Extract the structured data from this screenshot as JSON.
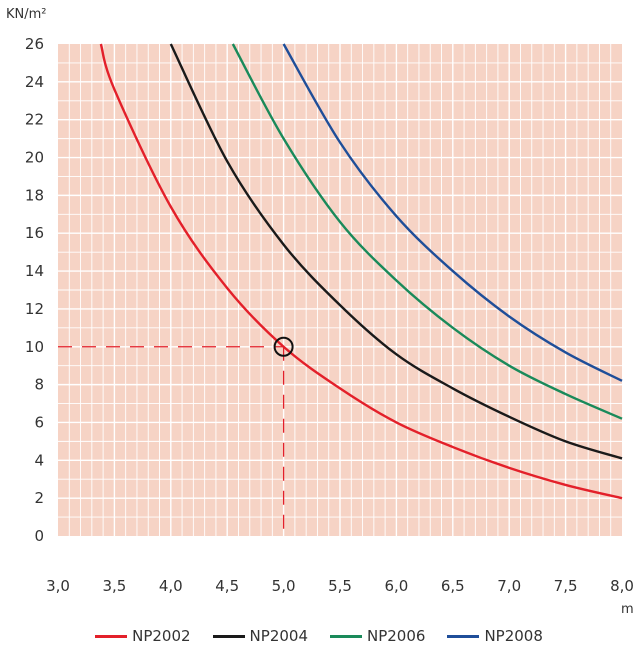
{
  "chart_data": {
    "type": "line",
    "ylabel": "KN/m²",
    "xlabel": "m",
    "x_ticks": [
      "3,0",
      "3,5",
      "4,0",
      "4,5",
      "5,0",
      "5,5",
      "6,0",
      "6,5",
      "7,0",
      "7,5",
      "8,0"
    ],
    "y_ticks": [
      "0",
      "2",
      "4",
      "6",
      "8",
      "10",
      "12",
      "14",
      "16",
      "18",
      "20",
      "22",
      "24",
      "26"
    ],
    "xlim": [
      3.0,
      8.0
    ],
    "ylim": [
      0,
      26
    ],
    "grid": true,
    "background_color": "#f6d3c5",
    "grid_color": "#ffffff",
    "legend_position": "bottom",
    "series": [
      {
        "name": "NP2002",
        "color": "#e3202a",
        "points": [
          [
            3.38,
            26
          ],
          [
            3.5,
            23.6
          ],
          [
            4.0,
            17.4
          ],
          [
            4.5,
            13.1
          ],
          [
            5.0,
            10.0
          ],
          [
            5.5,
            7.8
          ],
          [
            6.0,
            6.0
          ],
          [
            6.5,
            4.7
          ],
          [
            7.0,
            3.6
          ],
          [
            7.5,
            2.7
          ],
          [
            8.0,
            2.0
          ]
        ]
      },
      {
        "name": "NP2004",
        "color": "#1a1a1a",
        "points": [
          [
            4.0,
            26
          ],
          [
            4.5,
            19.8
          ],
          [
            5.0,
            15.4
          ],
          [
            5.5,
            12.2
          ],
          [
            6.0,
            9.6
          ],
          [
            6.5,
            7.8
          ],
          [
            7.0,
            6.3
          ],
          [
            7.5,
            5.0
          ],
          [
            8.0,
            4.1
          ]
        ]
      },
      {
        "name": "NP2006",
        "color": "#1a8a5a",
        "points": [
          [
            4.55,
            26
          ],
          [
            5.0,
            21.0
          ],
          [
            5.5,
            16.6
          ],
          [
            6.0,
            13.5
          ],
          [
            6.5,
            11.0
          ],
          [
            7.0,
            9.0
          ],
          [
            7.5,
            7.5
          ],
          [
            8.0,
            6.2
          ]
        ]
      },
      {
        "name": "NP2008",
        "color": "#1f4e99",
        "points": [
          [
            5.0,
            26
          ],
          [
            5.5,
            20.8
          ],
          [
            6.0,
            16.9
          ],
          [
            6.5,
            14.0
          ],
          [
            7.0,
            11.6
          ],
          [
            7.5,
            9.7
          ],
          [
            8.0,
            8.2
          ]
        ]
      }
    ],
    "reference": {
      "x": 5.0,
      "y": 10,
      "color": "#e3202a",
      "marker_color": "#111111"
    }
  }
}
